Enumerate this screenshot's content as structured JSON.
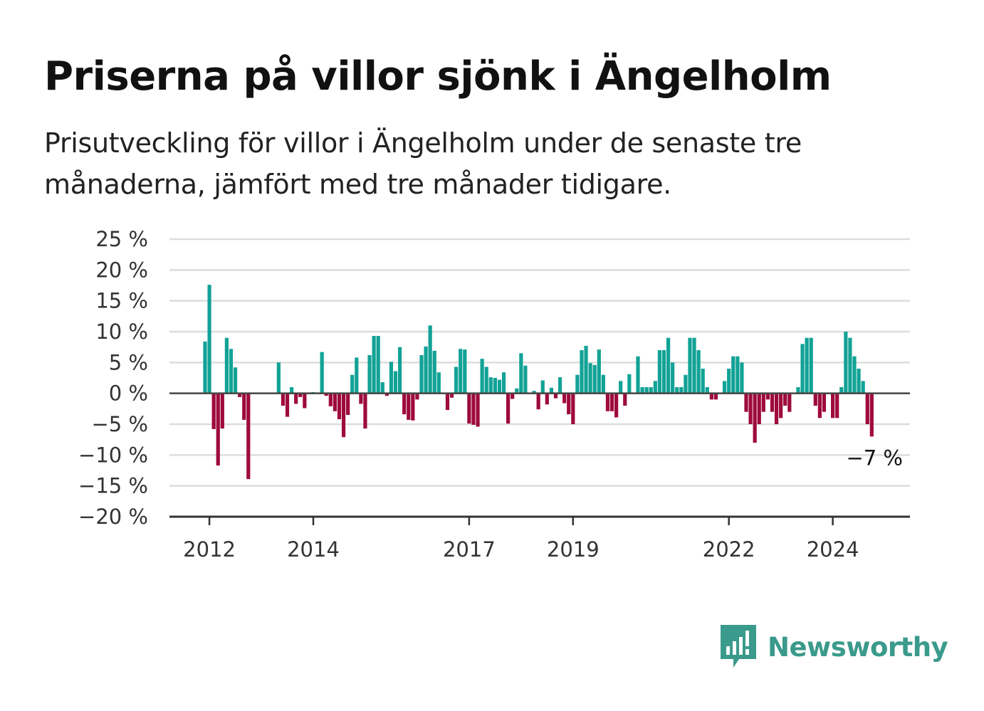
{
  "title": "Priserna på villor sjönk i Ängelholm",
  "subtitle": "Prisutveckling för villor i Ängelholm under de senaste tre månaderna, jämfört med tre månader tidigare.",
  "logo_text": "Newsworthy",
  "colors": {
    "positive": "#12a296",
    "negative": "#9e0a3c",
    "grid": "#dddddd",
    "axis": "#444444",
    "logo": "#3a9a8b"
  },
  "chart_data": {
    "type": "bar",
    "title": "Priserna på villor sjönk i Ängelholm",
    "subtitle": "Prisutveckling för villor i Ängelholm under de senaste tre månaderna, jämfört med tre månader tidigare.",
    "xlabel": "",
    "ylabel": "",
    "ylim": [
      -20,
      25
    ],
    "yticks": [
      25,
      20,
      15,
      10,
      5,
      0,
      -5,
      -10,
      -15,
      -20
    ],
    "ytick_labels": [
      "25 %",
      "20 %",
      "15 %",
      "10 %",
      "5 %",
      "0 %",
      "−5 %",
      "−10 %",
      "−15 %",
      "−20 %"
    ],
    "xticks": [
      {
        "label": "2012",
        "date": "2012-01"
      },
      {
        "label": "2014",
        "date": "2014-01"
      },
      {
        "label": "2017",
        "date": "2017-01"
      },
      {
        "label": "2019",
        "date": "2019-01"
      },
      {
        "label": "2022",
        "date": "2022-01"
      },
      {
        "label": "2024",
        "date": "2024-01"
      }
    ],
    "start_month": "2011-12",
    "grid": true,
    "end_label": "−7 %",
    "values": [
      8.4,
      17.6,
      -5.8,
      -11.7,
      -5.7,
      9.0,
      7.2,
      4.2,
      -0.6,
      -4.3,
      -13.9,
      0,
      0,
      0,
      0,
      0,
      0,
      5.0,
      -2.0,
      -3.8,
      1.0,
      -1.7,
      -0.6,
      -2.4,
      0,
      0.2,
      0,
      6.7,
      -0.4,
      -2.1,
      -2.9,
      -4.2,
      -7.1,
      -3.5,
      3.0,
      5.8,
      -1.7,
      -5.7,
      6.2,
      9.3,
      9.3,
      1.8,
      -0.4,
      5.1,
      3.6,
      7.5,
      -3.4,
      -4.3,
      -4.4,
      -1.0,
      6.2,
      7.6,
      11.0,
      6.9,
      3.4,
      0,
      -2.7,
      -0.7,
      4.3,
      7.2,
      7.1,
      -4.9,
      -5.1,
      -5.4,
      5.6,
      4.3,
      2.6,
      2.5,
      2.2,
      3.4,
      -4.9,
      -0.9,
      0.8,
      6.5,
      4.5,
      0,
      0.4,
      -2.6,
      2.1,
      -1.8,
      0.9,
      -0.8,
      2.6,
      -1.6,
      -3.4,
      -5.0,
      3.0,
      7.0,
      7.7,
      4.9,
      4.6,
      7.1,
      3.0,
      -2.9,
      -2.9,
      -3.9,
      2.0,
      -2.0,
      3.1,
      0,
      6.0,
      1.0,
      1.0,
      1.0,
      2.0,
      7.0,
      7.0,
      9.0,
      5.0,
      1.0,
      1.0,
      3.0,
      9.0,
      9.0,
      7.0,
      4.0,
      1.0,
      -1.0,
      -1.0,
      0,
      2.0,
      4.0,
      6.0,
      6.0,
      5.0,
      -3.0,
      -5.0,
      -8.0,
      -5.0,
      -3.0,
      -1.0,
      -3.0,
      -5.0,
      -4.0,
      -2.0,
      -3.0,
      0,
      1.0,
      8.0,
      9.0,
      9.0,
      -2.0,
      -4.0,
      -3.0,
      0,
      -4.0,
      -4.0,
      1.0,
      10.0,
      9.0,
      6.0,
      4.0,
      2.0,
      -5.0,
      -7.0
    ]
  }
}
